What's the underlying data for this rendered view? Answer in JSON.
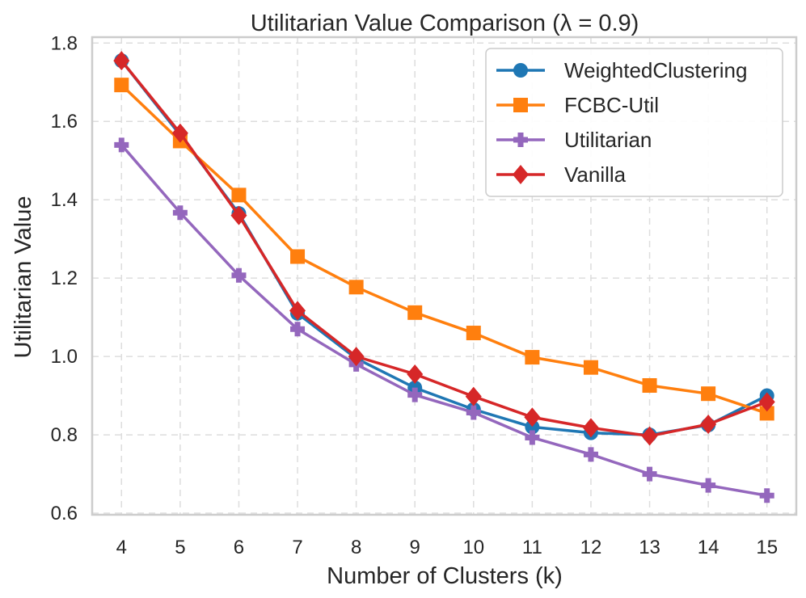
{
  "chart_data": {
    "type": "line",
    "title": "Utilitarian Value Comparison (λ = 0.9)",
    "xlabel": "Number of Clusters (k)",
    "ylabel": "Utilitarian Value",
    "x": [
      4,
      5,
      6,
      7,
      8,
      9,
      10,
      11,
      12,
      13,
      14,
      15
    ],
    "xlim": [
      3.5,
      15.5
    ],
    "ylim": [
      0.596,
      1.815
    ],
    "yticks": [
      0.6,
      0.8,
      1.0,
      1.2,
      1.4,
      1.6,
      1.8
    ],
    "ytick_labels": [
      "0.6",
      "0.8",
      "1.0",
      "1.2",
      "1.4",
      "1.6",
      "1.8"
    ],
    "xtick_labels": [
      "4",
      "5",
      "6",
      "7",
      "8",
      "9",
      "10",
      "11",
      "12",
      "13",
      "14",
      "15"
    ],
    "grid": true,
    "legend_position": "top-right",
    "series": [
      {
        "name": "WeightedClustering",
        "color": "#1f77b4",
        "marker": "circle",
        "values": [
          1.755,
          1.565,
          1.365,
          1.11,
          0.995,
          0.92,
          0.865,
          0.82,
          0.805,
          0.8,
          0.825,
          0.9
        ]
      },
      {
        "name": "FCBC-Util",
        "color": "#ff7f0e",
        "marker": "square",
        "values": [
          1.693,
          1.55,
          1.412,
          1.255,
          1.177,
          1.112,
          1.06,
          0.998,
          0.972,
          0.926,
          0.905,
          0.855
        ]
      },
      {
        "name": "Utilitarian",
        "color": "#9467bd",
        "marker": "plus",
        "values": [
          1.54,
          1.367,
          1.207,
          1.07,
          0.98,
          0.902,
          0.857,
          0.793,
          0.75,
          0.7,
          0.671,
          0.645
        ]
      },
      {
        "name": "Vanilla",
        "color": "#d62728",
        "marker": "diamond",
        "values": [
          1.755,
          1.57,
          1.36,
          1.117,
          1.0,
          0.955,
          0.898,
          0.845,
          0.818,
          0.797,
          0.827,
          0.884
        ]
      }
    ]
  }
}
